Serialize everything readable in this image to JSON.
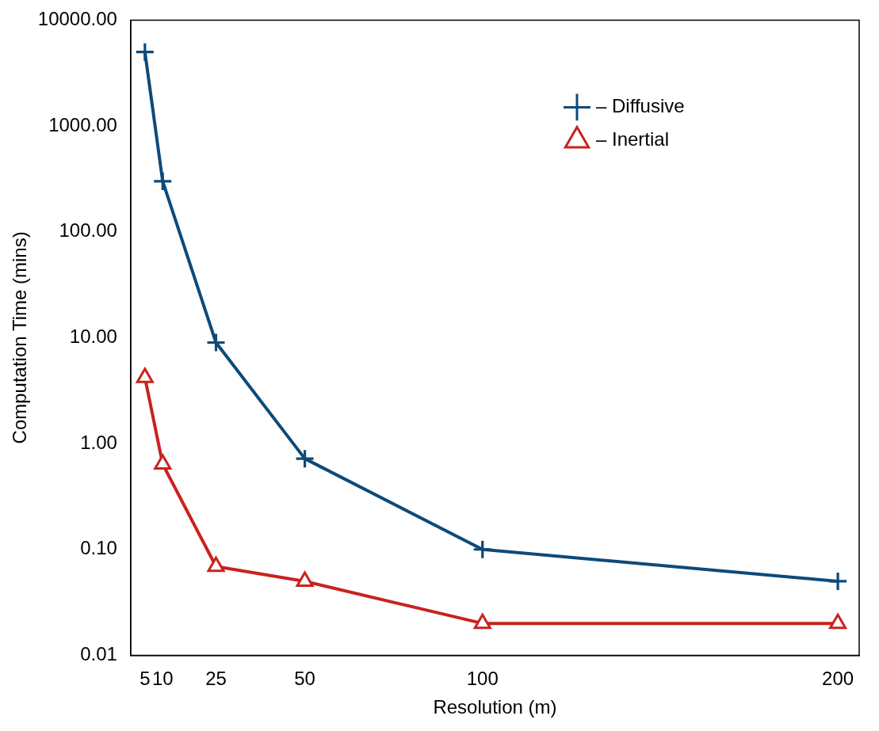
{
  "chart_data": {
    "type": "line",
    "xlabel": "Resolution (m)",
    "ylabel": "Computation Time (mins)",
    "x": [
      5,
      10,
      25,
      50,
      100,
      200
    ],
    "series": [
      {
        "name": "– Diffusive",
        "color": "#0d4a7a",
        "marker": "cross",
        "values": [
          5000,
          300,
          9,
          0.72,
          0.1,
          0.05
        ]
      },
      {
        "name": "– Inertial",
        "color": "#c8231e",
        "marker": "triangle",
        "values": [
          4.2,
          0.64,
          0.069,
          0.05,
          0.02,
          0.02
        ]
      }
    ],
    "log": "y",
    "xlim": [
      1,
      206
    ],
    "xticks": [
      5,
      10,
      25,
      50,
      100,
      200
    ],
    "ylim": [
      0.01,
      10000
    ],
    "yticks": [
      {
        "value": 0.01,
        "label": "0.01"
      },
      {
        "value": 0.1,
        "label": "0.10"
      },
      {
        "value": 1,
        "label": "1.00"
      },
      {
        "value": 10,
        "label": "10.00"
      },
      {
        "value": 100,
        "label": "100.00"
      },
      {
        "value": 1000,
        "label": "1000.00"
      },
      {
        "value": 10000,
        "label": "10000.00"
      }
    ],
    "grid": false,
    "legend": "top right",
    "line_style": "solid"
  }
}
